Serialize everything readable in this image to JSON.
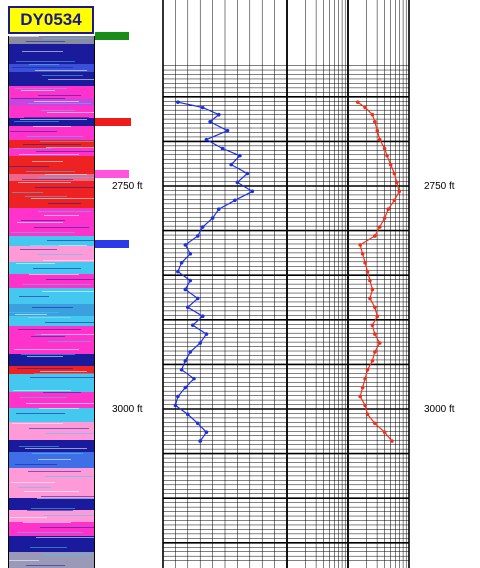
{
  "well_id": "DY0534",
  "depth_labels": [
    "2750 ft",
    "3000 ft"
  ],
  "colors": {
    "title_bg": "#ffff00",
    "title_text": "#1a1a8c",
    "curve_1": "#1f2fe0",
    "curve_2": "#f0301e",
    "marker_green": "#1a8c1a",
    "marker_red": "#ee1c1c",
    "marker_magenta": "#ff55dd",
    "marker_blue": "#2b3ae8",
    "facies_dark_blue": "#1a1a9c",
    "facies_red": "#ee2222",
    "facies_magenta": "#ff33cc",
    "facies_light_blue": "#44c8f0",
    "facies_pink": "#ff9ad8"
  },
  "chart_data": {
    "type": "line",
    "title": "",
    "ylabel": "",
    "y_unit": "ft",
    "y_ticks": [
      2750,
      3000
    ],
    "ylim": [
      2615,
      3170
    ],
    "y_inverted": true,
    "grid": true,
    "series": [
      {
        "color": "blue",
        "depth": [
          2656,
          2662,
          2670,
          2678,
          2688,
          2698,
          2708,
          2716,
          2726,
          2736,
          2746,
          2756,
          2766,
          2776,
          2786,
          2796,
          2806,
          2816,
          2826,
          2836,
          2846,
          2856,
          2866,
          2876,
          2886,
          2896,
          2906,
          2916,
          2926,
          2936,
          2946,
          2956,
          2966,
          2976,
          2986,
          2996,
          3006,
          3016,
          3026,
          3036
        ],
        "value": [
          0.12,
          0.32,
          0.45,
          0.38,
          0.52,
          0.35,
          0.48,
          0.62,
          0.55,
          0.68,
          0.6,
          0.72,
          0.58,
          0.45,
          0.4,
          0.32,
          0.28,
          0.18,
          0.22,
          0.15,
          0.12,
          0.22,
          0.18,
          0.28,
          0.2,
          0.32,
          0.24,
          0.35,
          0.3,
          0.22,
          0.18,
          0.15,
          0.25,
          0.18,
          0.12,
          0.1,
          0.2,
          0.28,
          0.35,
          0.3
        ]
      },
      {
        "color": "red",
        "depth": [
          2656,
          2662,
          2670,
          2678,
          2688,
          2698,
          2708,
          2716,
          2726,
          2736,
          2746,
          2756,
          2766,
          2776,
          2786,
          2796,
          2806,
          2816,
          2826,
          2836,
          2846,
          2856,
          2866,
          2876,
          2886,
          2896,
          2906,
          2916,
          2926,
          2936,
          2946,
          2956,
          2966,
          2976,
          2986,
          2996,
          3006,
          3016,
          3026,
          3036
        ],
        "value": [
          0.58,
          0.64,
          0.7,
          0.72,
          0.74,
          0.76,
          0.8,
          0.82,
          0.85,
          0.88,
          0.9,
          0.92,
          0.88,
          0.83,
          0.8,
          0.76,
          0.72,
          0.6,
          0.62,
          0.64,
          0.66,
          0.68,
          0.7,
          0.68,
          0.72,
          0.74,
          0.7,
          0.72,
          0.76,
          0.72,
          0.7,
          0.66,
          0.64,
          0.62,
          0.6,
          0.64,
          0.66,
          0.72,
          0.8,
          0.86
        ]
      }
    ]
  }
}
